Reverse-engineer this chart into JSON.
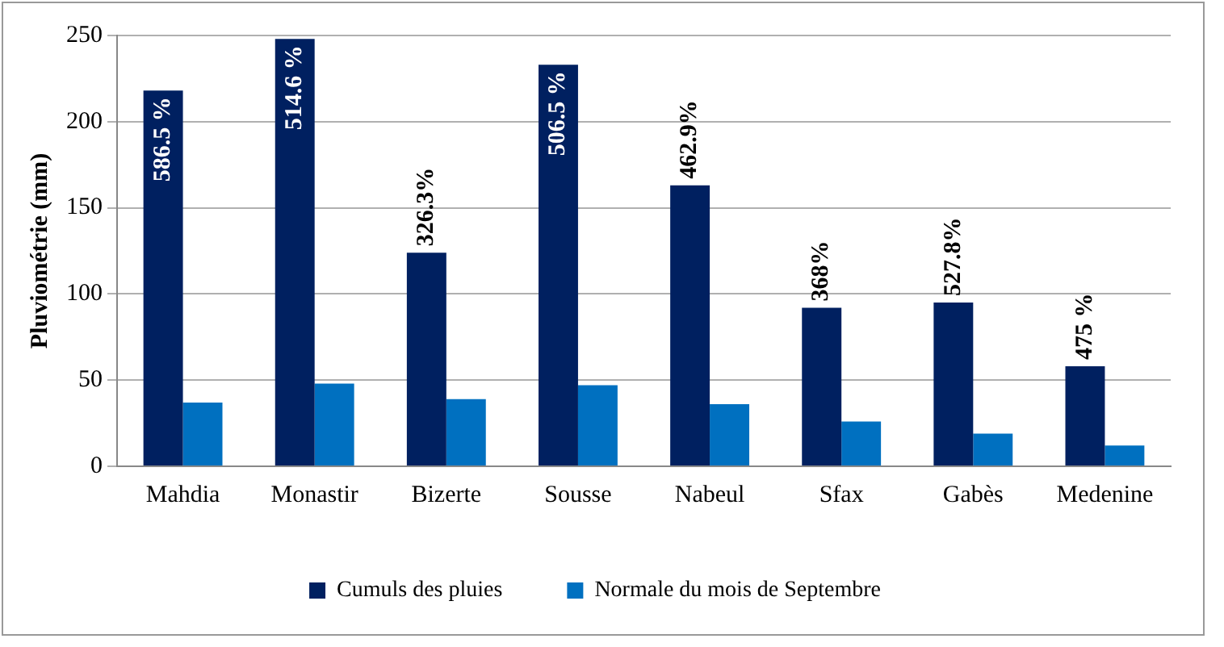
{
  "chart_data": {
    "type": "bar",
    "ylabel": "Pluviométrie (mm)",
    "categories": [
      "Mahdia",
      "Monastir",
      "Bizerte",
      "Sousse",
      "Nabeul",
      "Sfax",
      "Gabès",
      "Medenine"
    ],
    "series": [
      {
        "name": "Cumuls des pluies",
        "color": "#002060",
        "values": [
          218,
          248,
          124,
          233,
          163,
          92,
          95,
          58
        ]
      },
      {
        "name": "Normale du mois de Septembre",
        "color": "#0070c0",
        "values": [
          37,
          48,
          39,
          47,
          36,
          26,
          19,
          12
        ]
      }
    ],
    "annotations": [
      {
        "text": "586.5 %",
        "x": "Mahdia",
        "y": 218
      },
      {
        "text": "514.6 %",
        "x": "Monastir",
        "y": 248
      },
      {
        "text": "326.3%",
        "x": "Bizerte",
        "y": 124
      },
      {
        "text": "506.5 %",
        "x": "Sousse",
        "y": 233
      },
      {
        "text": "462.9%",
        "x": "Nabeul",
        "y": 163
      },
      {
        "text": "368%",
        "x": "Sfax",
        "y": 92
      },
      {
        "text": "527.8%",
        "x": "Gabès",
        "y": 95
      },
      {
        "text": "475 %",
        "x": "Medenine",
        "y": 58
      }
    ],
    "ylim": [
      0,
      250
    ],
    "yticks": [
      0,
      50,
      100,
      150,
      200,
      250
    ],
    "grid": "y",
    "legend": "bottom"
  }
}
